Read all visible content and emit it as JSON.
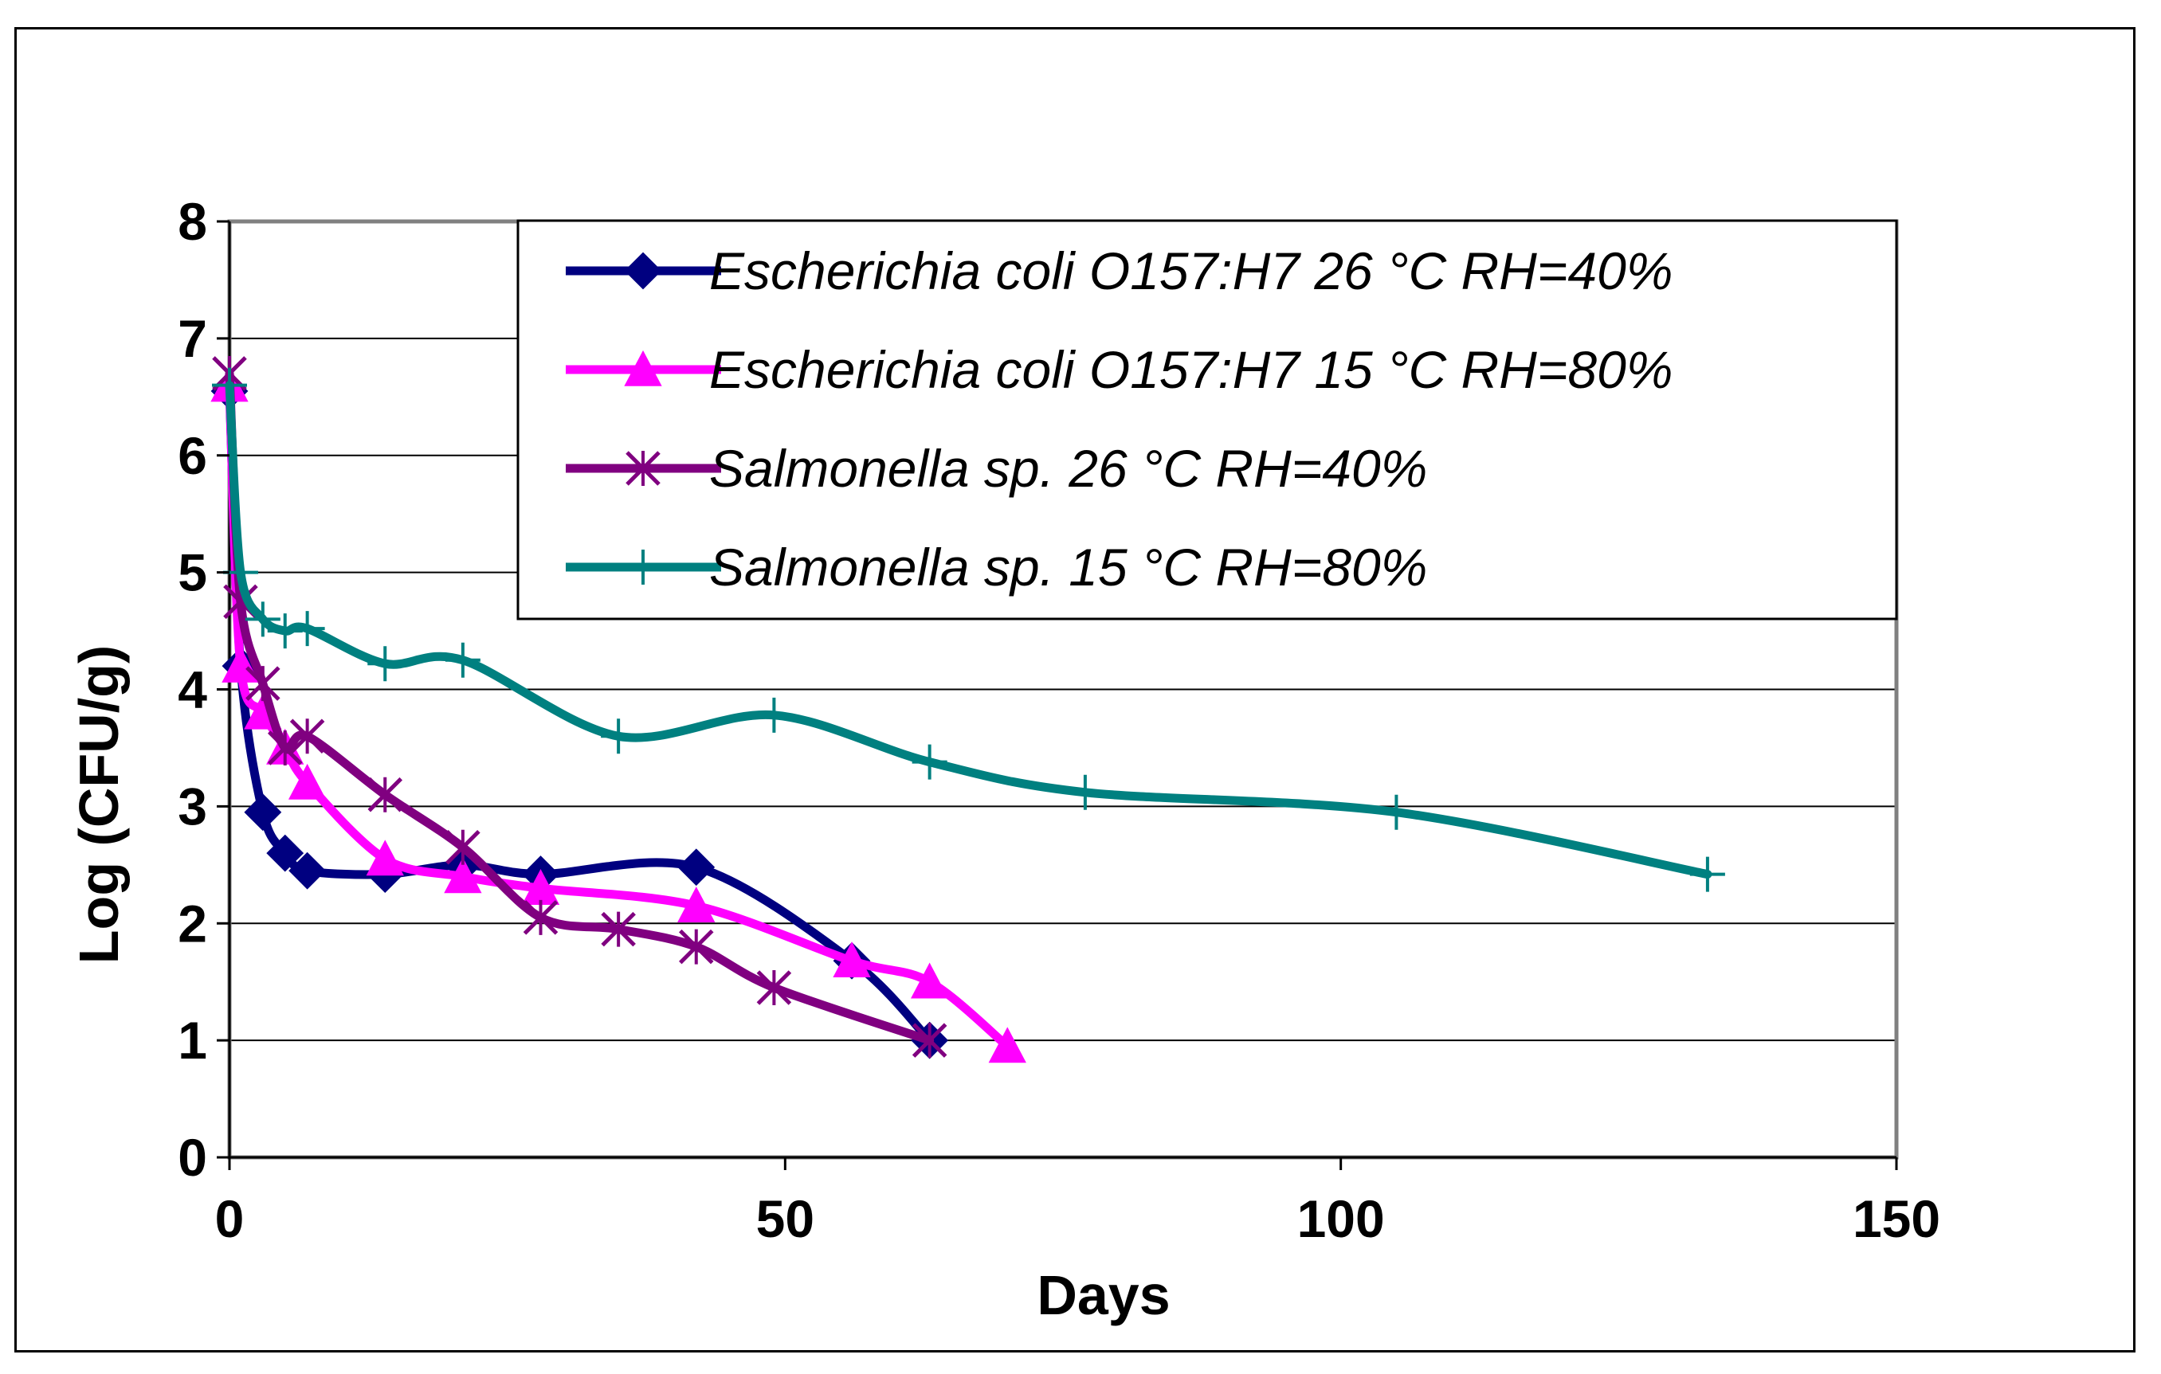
{
  "chart_data": {
    "type": "line",
    "title": "",
    "xlabel": "Days",
    "ylabel": "Log (CFU/g)",
    "xlim": [
      0,
      150
    ],
    "ylim": [
      0,
      8
    ],
    "xticks": [
      "0",
      "50",
      "100",
      "150"
    ],
    "yticks": [
      "0",
      "1",
      "2",
      "3",
      "4",
      "5",
      "6",
      "7",
      "8"
    ],
    "grid": true,
    "legend_position": "top-right",
    "series": [
      {
        "name": "Escherichia coli O157:H7  26 °C RH=40%",
        "color": "#000080",
        "marker": "diamond",
        "x": [
          0,
          1,
          3,
          5,
          7,
          14,
          21,
          28,
          42,
          56,
          63
        ],
        "y": [
          6.55,
          4.2,
          2.95,
          2.6,
          2.45,
          2.42,
          2.5,
          2.42,
          2.48,
          1.68,
          1.0
        ]
      },
      {
        "name": "Escherichia coli O157:H7  15 °C RH=80%",
        "color": "#FF00FF",
        "marker": "triangle",
        "x": [
          0,
          1,
          3,
          5,
          7,
          14,
          21,
          28,
          42,
          56,
          63,
          70
        ],
        "y": [
          6.6,
          4.2,
          3.8,
          3.5,
          3.2,
          2.55,
          2.4,
          2.3,
          2.15,
          1.68,
          1.5,
          0.95
        ]
      },
      {
        "name": "Salmonella sp. 26 °C RH=40%",
        "color": "#800080",
        "marker": "star",
        "x": [
          0,
          1,
          3,
          5,
          7,
          14,
          21,
          28,
          35,
          42,
          49,
          63
        ],
        "y": [
          6.7,
          4.75,
          4.05,
          3.5,
          3.6,
          3.1,
          2.65,
          2.05,
          1.95,
          1.8,
          1.45,
          1.0
        ]
      },
      {
        "name": "Salmonella sp. 15 °C RH=80%",
        "color": "#008080",
        "marker": "plus",
        "x": [
          0,
          1,
          3,
          5,
          7,
          14,
          21,
          35,
          49,
          63,
          77,
          105,
          133
        ],
        "y": [
          6.6,
          5.0,
          4.6,
          4.5,
          4.52,
          4.22,
          4.25,
          3.6,
          3.78,
          3.38,
          3.12,
          2.95,
          2.42
        ]
      }
    ]
  }
}
